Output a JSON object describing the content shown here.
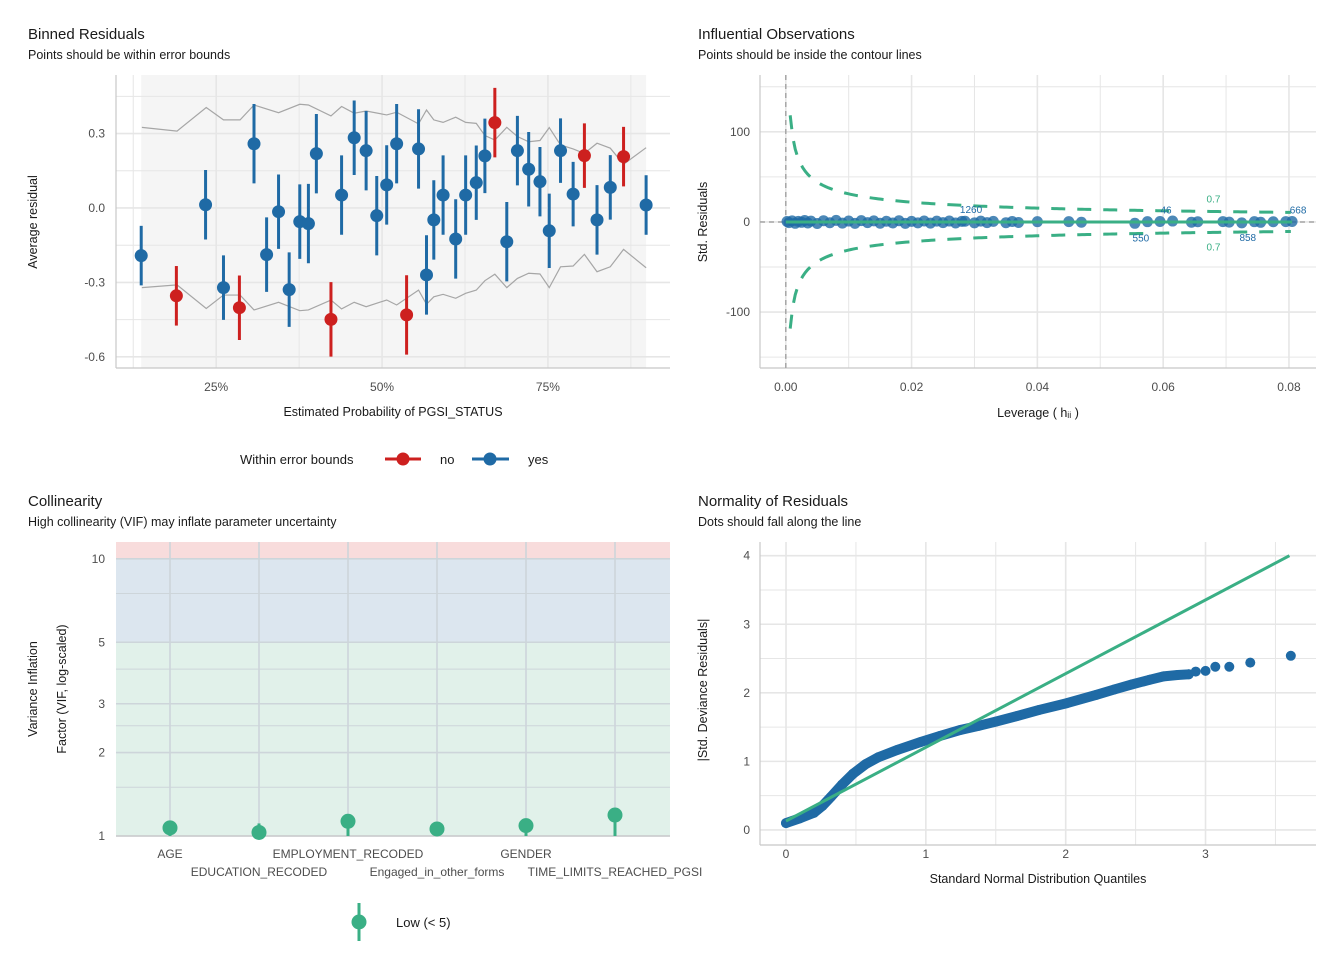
{
  "colors": {
    "blue": "#1f6aa5",
    "red": "#cd201f",
    "green": "#3aaf85",
    "bound": "#a6a6a6",
    "shade": "#f5f5f5",
    "vif_high": "#f8dcdc",
    "vif_moderate": "#dce6ef",
    "vif_low": "#e1f1ea"
  },
  "chart_data": [
    {
      "type": "scatter",
      "title": "Binned Residuals",
      "subtitle": "Points should be within error bounds",
      "xlabel": "Estimated Probability of PGSI_STATUS",
      "ylabel": "Average residual",
      "xlim": [
        9.9,
        93.4
      ],
      "ylim": [
        -0.645,
        0.536
      ],
      "x_ticks": [
        25,
        50,
        75
      ],
      "x_tick_labels": [
        "25%",
        "50%",
        "75%"
      ],
      "y_ticks": [
        0.3,
        0,
        -0.3,
        -0.6
      ],
      "y_tick_labels": [
        "0.3",
        "0.0",
        "-0.3",
        "-0.6"
      ],
      "grid": true,
      "legend": {
        "title": "Within error bounds",
        "position": "bottom",
        "entries": [
          {
            "label": "no",
            "color": "#cd201f"
          },
          {
            "label": "yes",
            "color": "#1f6aa5"
          }
        ]
      },
      "points": [
        {
          "x": 13.7,
          "y": -0.192,
          "ci": 0.12,
          "within": "yes"
        },
        {
          "x": 19.0,
          "y": -0.354,
          "ci": 0.12,
          "within": "no"
        },
        {
          "x": 23.4,
          "y": 0.013,
          "ci": 0.14,
          "within": "yes"
        },
        {
          "x": 26.1,
          "y": -0.321,
          "ci": 0.13,
          "within": "yes"
        },
        {
          "x": 28.5,
          "y": -0.402,
          "ci": 0.13,
          "within": "no"
        },
        {
          "x": 30.7,
          "y": 0.259,
          "ci": 0.16,
          "within": "yes"
        },
        {
          "x": 32.6,
          "y": -0.188,
          "ci": 0.15,
          "within": "yes"
        },
        {
          "x": 34.4,
          "y": -0.015,
          "ci": 0.15,
          "within": "yes"
        },
        {
          "x": 36.0,
          "y": -0.329,
          "ci": 0.15,
          "within": "yes"
        },
        {
          "x": 37.6,
          "y": -0.055,
          "ci": 0.15,
          "within": "yes"
        },
        {
          "x": 38.9,
          "y": -0.063,
          "ci": 0.16,
          "within": "yes"
        },
        {
          "x": 40.1,
          "y": 0.219,
          "ci": 0.16,
          "within": "yes"
        },
        {
          "x": 42.3,
          "y": -0.449,
          "ci": 0.15,
          "within": "no"
        },
        {
          "x": 43.9,
          "y": 0.052,
          "ci": 0.16,
          "within": "yes"
        },
        {
          "x": 45.8,
          "y": 0.283,
          "ci": 0.15,
          "within": "yes"
        },
        {
          "x": 47.6,
          "y": 0.231,
          "ci": 0.16,
          "within": "yes"
        },
        {
          "x": 49.2,
          "y": -0.031,
          "ci": 0.16,
          "within": "yes"
        },
        {
          "x": 50.7,
          "y": 0.093,
          "ci": 0.16,
          "within": "yes"
        },
        {
          "x": 52.2,
          "y": 0.259,
          "ci": 0.16,
          "within": "yes"
        },
        {
          "x": 53.7,
          "y": -0.431,
          "ci": 0.16,
          "within": "no"
        },
        {
          "x": 55.5,
          "y": 0.238,
          "ci": 0.16,
          "within": "yes"
        },
        {
          "x": 56.7,
          "y": -0.27,
          "ci": 0.16,
          "within": "yes"
        },
        {
          "x": 57.8,
          "y": -0.048,
          "ci": 0.16,
          "within": "yes"
        },
        {
          "x": 59.2,
          "y": 0.052,
          "ci": 0.16,
          "within": "yes"
        },
        {
          "x": 61.1,
          "y": -0.125,
          "ci": 0.16,
          "within": "yes"
        },
        {
          "x": 62.6,
          "y": 0.052,
          "ci": 0.16,
          "within": "yes"
        },
        {
          "x": 64.2,
          "y": 0.102,
          "ci": 0.15,
          "within": "yes"
        },
        {
          "x": 65.5,
          "y": 0.21,
          "ci": 0.15,
          "within": "yes"
        },
        {
          "x": 67.0,
          "y": 0.344,
          "ci": 0.14,
          "within": "no"
        },
        {
          "x": 68.8,
          "y": -0.136,
          "ci": 0.16,
          "within": "yes"
        },
        {
          "x": 70.4,
          "y": 0.231,
          "ci": 0.14,
          "within": "yes"
        },
        {
          "x": 72.1,
          "y": 0.156,
          "ci": 0.15,
          "within": "yes"
        },
        {
          "x": 73.8,
          "y": 0.106,
          "ci": 0.14,
          "within": "yes"
        },
        {
          "x": 75.2,
          "y": -0.092,
          "ci": 0.15,
          "within": "yes"
        },
        {
          "x": 76.9,
          "y": 0.231,
          "ci": 0.13,
          "within": "yes"
        },
        {
          "x": 78.8,
          "y": 0.056,
          "ci": 0.13,
          "within": "yes"
        },
        {
          "x": 80.5,
          "y": 0.211,
          "ci": 0.13,
          "within": "no"
        },
        {
          "x": 82.4,
          "y": -0.048,
          "ci": 0.14,
          "within": "yes"
        },
        {
          "x": 84.4,
          "y": 0.083,
          "ci": 0.13,
          "within": "yes"
        },
        {
          "x": 86.4,
          "y": 0.207,
          "ci": 0.12,
          "within": "no"
        },
        {
          "x": 89.8,
          "y": 0.012,
          "ci": 0.12,
          "within": "yes"
        }
      ],
      "upper_bound": [
        [
          13.8,
          0.325
        ],
        [
          19.1,
          0.31
        ],
        [
          23.5,
          0.405
        ],
        [
          26.1,
          0.355
        ],
        [
          28.6,
          0.355
        ],
        [
          30.7,
          0.415
        ],
        [
          34.4,
          0.384
        ],
        [
          37.6,
          0.418
        ],
        [
          38.9,
          0.415
        ],
        [
          42.3,
          0.371
        ],
        [
          43.9,
          0.409
        ],
        [
          45.8,
          0.382
        ],
        [
          47.6,
          0.391
        ],
        [
          50.7,
          0.375
        ],
        [
          52.2,
          0.386
        ],
        [
          55.5,
          0.339
        ],
        [
          56.7,
          0.395
        ],
        [
          57.8,
          0.355
        ],
        [
          59.2,
          0.345
        ],
        [
          61.1,
          0.366
        ],
        [
          62.6,
          0.345
        ],
        [
          64.2,
          0.341
        ],
        [
          65.5,
          0.292
        ],
        [
          67.0,
          0.274
        ],
        [
          68.8,
          0.325
        ],
        [
          70.4,
          0.288
        ],
        [
          72.1,
          0.267
        ],
        [
          73.8,
          0.272
        ],
        [
          75.2,
          0.324
        ],
        [
          76.9,
          0.254
        ],
        [
          78.8,
          0.238
        ],
        [
          80.5,
          0.22
        ],
        [
          82.4,
          0.261
        ],
        [
          84.4,
          0.241
        ],
        [
          86.4,
          0.176
        ],
        [
          89.8,
          0.243
        ]
      ],
      "lower_bound": [
        [
          13.8,
          -0.321
        ],
        [
          19.1,
          -0.31
        ],
        [
          23.5,
          -0.405
        ],
        [
          26.1,
          -0.351
        ],
        [
          28.6,
          -0.351
        ],
        [
          30.7,
          -0.411
        ],
        [
          34.4,
          -0.38
        ],
        [
          37.6,
          -0.414
        ],
        [
          38.9,
          -0.411
        ],
        [
          42.3,
          -0.371
        ],
        [
          43.9,
          -0.407
        ],
        [
          45.8,
          -0.38
        ],
        [
          47.6,
          -0.398
        ],
        [
          50.7,
          -0.371
        ],
        [
          52.2,
          -0.391
        ],
        [
          55.5,
          -0.331
        ],
        [
          56.7,
          -0.388
        ],
        [
          57.8,
          -0.358
        ],
        [
          59.2,
          -0.348
        ],
        [
          61.1,
          -0.364
        ],
        [
          62.6,
          -0.344
        ],
        [
          64.2,
          -0.331
        ],
        [
          65.5,
          -0.293
        ],
        [
          67.0,
          -0.267
        ],
        [
          68.8,
          -0.321
        ],
        [
          70.4,
          -0.284
        ],
        [
          72.1,
          -0.263
        ],
        [
          73.8,
          -0.266
        ],
        [
          75.2,
          -0.321
        ],
        [
          76.9,
          -0.237
        ],
        [
          78.8,
          -0.234
        ],
        [
          80.5,
          -0.187
        ],
        [
          82.4,
          -0.257
        ],
        [
          84.4,
          -0.237
        ],
        [
          86.4,
          -0.167
        ],
        [
          89.8,
          -0.241
        ]
      ],
      "shaded_range": [
        13.7,
        89.8
      ]
    },
    {
      "type": "scatter",
      "title": "Influential Observations",
      "subtitle": "Points should be inside the contour lines",
      "xlabel": "Leverage ( hᵢᵢ )",
      "ylabel": "Std. Residuals",
      "xlim": [
        -0.0041,
        0.0843
      ],
      "ylim": [
        -162,
        163
      ],
      "x_ticks": [
        0,
        0.02,
        0.04,
        0.06,
        0.08
      ],
      "x_tick_labels": [
        "0.00",
        "0.02",
        "0.04",
        "0.06",
        "0.08"
      ],
      "y_ticks": [
        100,
        0,
        -100
      ],
      "y_tick_labels": [
        "100",
        "0",
        "-100"
      ],
      "grid": true,
      "contour_level": 0.7,
      "contour_label": "0.7",
      "points": [
        [
          0.0002,
          0.5
        ],
        [
          0.0005,
          -0.8
        ],
        [
          0.001,
          1.2
        ],
        [
          0.0015,
          -1.5
        ],
        [
          0.002,
          0.7
        ],
        [
          0.0025,
          -0.4
        ],
        [
          0.003,
          1.6
        ],
        [
          0.0035,
          -1.2
        ],
        [
          0.004,
          0.9
        ],
        [
          0.005,
          -1.7
        ],
        [
          0.006,
          1.4
        ],
        [
          0.007,
          -0.9
        ],
        [
          0.008,
          1.8
        ],
        [
          0.009,
          -1.3
        ],
        [
          0.01,
          1.0
        ],
        [
          0.011,
          -1.6
        ],
        [
          0.012,
          1.5
        ],
        [
          0.013,
          -0.7
        ],
        [
          0.014,
          1.2
        ],
        [
          0.015,
          -1.4
        ],
        [
          0.016,
          0.8
        ],
        [
          0.017,
          -1.1
        ],
        [
          0.018,
          1.3
        ],
        [
          0.019,
          -1.6
        ],
        [
          0.02,
          0.6
        ],
        [
          0.021,
          -1.0
        ],
        [
          0.022,
          1.1
        ],
        [
          0.023,
          -1.3
        ],
        [
          0.024,
          0.9
        ],
        [
          0.025,
          -0.8
        ],
        [
          0.026,
          1.0
        ],
        [
          0.027,
          -1.2
        ],
        [
          0.028,
          0.7
        ],
        [
          0.0285,
          0.8
        ],
        [
          0.03,
          -1.0
        ],
        [
          0.031,
          0.9
        ],
        [
          0.032,
          -0.8
        ],
        [
          0.033,
          0.6
        ],
        [
          0.035,
          -0.9
        ],
        [
          0.036,
          0.5
        ],
        [
          0.037,
          -0.6
        ],
        [
          0.04,
          0.3
        ],
        [
          0.045,
          0.4
        ],
        [
          0.047,
          -0.3
        ],
        [
          0.0555,
          -1.5
        ],
        [
          0.0575,
          0.3
        ],
        [
          0.0595,
          0.5
        ],
        [
          0.0615,
          1.0
        ],
        [
          0.0645,
          -0.3
        ],
        [
          0.0655,
          0.2
        ],
        [
          0.0695,
          0.4
        ],
        [
          0.0705,
          -0.2
        ],
        [
          0.0725,
          -1.0
        ],
        [
          0.0745,
          0.3
        ],
        [
          0.0755,
          -0.4
        ],
        [
          0.0775,
          0.2
        ],
        [
          0.0795,
          0.4
        ],
        [
          0.0805,
          0.5
        ]
      ],
      "labeled_points": [
        {
          "id": "1260",
          "x": 0.0285,
          "y": 0.8
        },
        {
          "id": "46",
          "x": 0.0595,
          "y": 0.5
        },
        {
          "id": "668",
          "x": 0.0805,
          "y": 0.5
        },
        {
          "id": "550",
          "x": 0.0555,
          "y": -1.5
        },
        {
          "id": "858",
          "x": 0.0725,
          "y": -1.0
        }
      ]
    },
    {
      "type": "scatter",
      "title": "Collinearity",
      "subtitle": "High collinearity (VIF) may inflate parameter uncertainty",
      "ylabel_lines": [
        "Variance Inflation",
        "Factor (VIF, log-scaled)"
      ],
      "y_scale": "log",
      "ylim": [
        1,
        11.5
      ],
      "y_ticks": [
        10,
        5,
        3,
        2,
        1
      ],
      "y_tick_labels": [
        "10",
        "5",
        "3",
        "2",
        "1"
      ],
      "categories": [
        "AGE",
        "EDUCATION_RECODED",
        "EMPLOYMENT_RECODED",
        "Engaged_in_other_forms",
        "GENDER",
        "TIME_LIMITS_REACHED_PGSI"
      ],
      "values": [
        1.07,
        1.03,
        1.13,
        1.06,
        1.09,
        1.19
      ],
      "ci_upper": [
        1.09,
        1.11,
        1.15,
        1.08,
        1.11,
        1.21
      ],
      "bands": [
        {
          "from": 1,
          "to": 5,
          "level": "low"
        },
        {
          "from": 5,
          "to": 10,
          "level": "moderate"
        },
        {
          "from": 10,
          "to": 11.5,
          "level": "high"
        }
      ],
      "grid": true,
      "legend": {
        "position": "bottom",
        "entries": [
          {
            "label": "Low (< 5)",
            "color": "#3aaf85"
          }
        ]
      }
    },
    {
      "type": "scatter",
      "title": "Normality of Residuals",
      "subtitle": "Dots should fall along the line",
      "xlabel": "Standard Normal Distribution Quantiles",
      "ylabel": "|Std. Deviance Residuals|",
      "xlim": [
        -0.186,
        3.79
      ],
      "ylim": [
        -0.22,
        4.2
      ],
      "x_ticks": [
        0,
        1,
        2,
        3
      ],
      "x_tick_labels": [
        "0",
        "1",
        "2",
        "3"
      ],
      "y_ticks": [
        0,
        1,
        2,
        3,
        4
      ],
      "y_tick_labels": [
        "0",
        "1",
        "2",
        "3",
        "4"
      ],
      "grid": true,
      "reference_line": [
        [
          0,
          0.13
        ],
        [
          3.6,
          4.0
        ]
      ],
      "points": [
        [
          0,
          0.1
        ],
        [
          0.1,
          0.17
        ],
        [
          0.2,
          0.25
        ],
        [
          0.26,
          0.35
        ],
        [
          0.32,
          0.48
        ],
        [
          0.4,
          0.66
        ],
        [
          0.48,
          0.82
        ],
        [
          0.57,
          0.96
        ],
        [
          0.66,
          1.06
        ],
        [
          0.8,
          1.17
        ],
        [
          0.96,
          1.28
        ],
        [
          1.1,
          1.37
        ],
        [
          1.25,
          1.46
        ],
        [
          1.38,
          1.52
        ],
        [
          1.5,
          1.58
        ],
        [
          1.65,
          1.66
        ],
        [
          1.81,
          1.75
        ],
        [
          2.01,
          1.85
        ],
        [
          2.22,
          1.97
        ],
        [
          2.35,
          2.05
        ],
        [
          2.47,
          2.12
        ],
        [
          2.6,
          2.19
        ],
        [
          2.7,
          2.24
        ],
        [
          2.8,
          2.26
        ],
        [
          2.88,
          2.27
        ],
        [
          2.93,
          2.31
        ],
        [
          3.0,
          2.32
        ],
        [
          3.07,
          2.38
        ],
        [
          3.17,
          2.38
        ],
        [
          3.32,
          2.44
        ],
        [
          3.61,
          2.54
        ]
      ]
    }
  ]
}
